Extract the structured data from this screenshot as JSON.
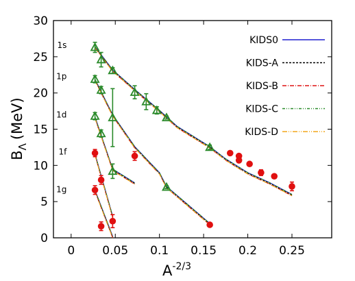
{
  "chart_data": {
    "type": "scatter",
    "xlabel": "A",
    "xlabel_sup": "-2/3",
    "ylabel": "B",
    "ylabel_sub": "Λ",
    "ylabel_unit": "(MeV)",
    "xlim": [
      -0.02,
      0.295
    ],
    "ylim": [
      0,
      30
    ],
    "xticks": [
      0,
      0.05,
      0.1,
      0.15,
      0.2,
      0.25
    ],
    "xtick_labels": [
      "0",
      "0.05",
      "0.1",
      "0.15",
      "0.2",
      "0.25"
    ],
    "yticks": [
      0,
      5,
      10,
      15,
      20,
      25,
      30
    ],
    "ytick_labels": [
      "0",
      "5",
      "10",
      "15",
      "20",
      "25",
      "30"
    ],
    "shell_labels": [
      {
        "text": "1s",
        "x": -0.005,
        "y": 26.2
      },
      {
        "text": "1p",
        "x": -0.005,
        "y": 21.9
      },
      {
        "text": "1d",
        "x": -0.005,
        "y": 16.6
      },
      {
        "text": "1f",
        "x": -0.005,
        "y": 11.5
      },
      {
        "text": "1g",
        "x": -0.005,
        "y": 6.3
      }
    ],
    "legend_position": "right",
    "series": [
      {
        "name": "KIDS0",
        "color": "#1f1fd0",
        "dash": "",
        "segments": [
          [
            [
              0.027,
              26.4
            ],
            [
              0.047,
              23.2
            ],
            [
              0.072,
              20.5
            ],
            [
              0.1,
              17.6
            ],
            [
              0.12,
              15.4
            ],
            [
              0.157,
              12.6
            ],
            [
              0.175,
              10.9
            ],
            [
              0.2,
              9.0
            ],
            [
              0.225,
              7.6
            ],
            [
              0.25,
              6.0
            ]
          ],
          [
            [
              0.027,
              21.9
            ],
            [
              0.047,
              17.0
            ],
            [
              0.072,
              12.6
            ],
            [
              0.1,
              9.0
            ],
            [
              0.108,
              7.1
            ],
            [
              0.157,
              2.0
            ]
          ],
          [
            [
              0.027,
              16.7
            ],
            [
              0.047,
              9.5
            ],
            [
              0.072,
              7.6
            ]
          ],
          [
            [
              0.027,
              11.6
            ],
            [
              0.047,
              3.0
            ]
          ],
          [
            [
              0.027,
              6.6
            ],
            [
              0.047,
              0.2
            ]
          ]
        ]
      },
      {
        "name": "KIDS-A",
        "color": "#000000",
        "dash": "3,2",
        "segments": [
          [
            [
              0.027,
              26.3
            ],
            [
              0.047,
              23.1
            ],
            [
              0.072,
              20.4
            ],
            [
              0.1,
              17.5
            ],
            [
              0.12,
              15.3
            ],
            [
              0.157,
              12.5
            ],
            [
              0.175,
              10.8
            ],
            [
              0.2,
              8.9
            ],
            [
              0.225,
              7.5
            ],
            [
              0.25,
              5.9
            ]
          ],
          [
            [
              0.027,
              21.8
            ],
            [
              0.047,
              16.9
            ],
            [
              0.072,
              12.5
            ],
            [
              0.1,
              8.9
            ],
            [
              0.108,
              7.0
            ],
            [
              0.157,
              1.9
            ]
          ],
          [
            [
              0.027,
              16.6
            ],
            [
              0.047,
              9.4
            ],
            [
              0.072,
              7.5
            ]
          ],
          [
            [
              0.027,
              11.5
            ],
            [
              0.047,
              2.9
            ]
          ],
          [
            [
              0.027,
              6.5
            ],
            [
              0.047,
              0.1
            ]
          ]
        ]
      },
      {
        "name": "KIDS-B",
        "color": "#dd1111",
        "dash": "6,2,1,2",
        "segments": [
          [
            [
              0.027,
              26.3
            ],
            [
              0.047,
              23.0
            ],
            [
              0.072,
              20.3
            ],
            [
              0.1,
              17.4
            ],
            [
              0.12,
              15.2
            ],
            [
              0.157,
              12.4
            ],
            [
              0.175,
              10.7
            ],
            [
              0.2,
              8.8
            ],
            [
              0.225,
              7.4
            ],
            [
              0.25,
              5.8
            ]
          ],
          [
            [
              0.027,
              21.7
            ],
            [
              0.047,
              16.8
            ],
            [
              0.072,
              12.4
            ],
            [
              0.1,
              8.8
            ],
            [
              0.108,
              6.9
            ],
            [
              0.157,
              1.8
            ]
          ],
          [
            [
              0.027,
              16.5
            ],
            [
              0.047,
              9.3
            ],
            [
              0.072,
              7.4
            ]
          ],
          [
            [
              0.027,
              11.4
            ],
            [
              0.047,
              2.8
            ]
          ],
          [
            [
              0.027,
              6.4
            ],
            [
              0.047,
              0.0
            ]
          ]
        ]
      },
      {
        "name": "KIDS-C",
        "color": "#2a8a2a",
        "dash": "4,2,1,2,1,2",
        "segments": [
          [
            [
              0.027,
              26.4
            ],
            [
              0.047,
              23.2
            ],
            [
              0.072,
              20.5
            ],
            [
              0.1,
              17.6
            ],
            [
              0.12,
              15.4
            ],
            [
              0.157,
              12.6
            ],
            [
              0.175,
              10.9
            ],
            [
              0.2,
              9.0
            ],
            [
              0.225,
              7.6
            ],
            [
              0.25,
              6.0
            ]
          ],
          [
            [
              0.027,
              21.9
            ],
            [
              0.047,
              17.0
            ],
            [
              0.072,
              12.6
            ],
            [
              0.1,
              9.0
            ],
            [
              0.108,
              7.1
            ],
            [
              0.157,
              2.0
            ]
          ],
          [
            [
              0.027,
              16.7
            ],
            [
              0.047,
              9.5
            ],
            [
              0.072,
              7.6
            ]
          ],
          [
            [
              0.027,
              11.6
            ],
            [
              0.047,
              3.0
            ]
          ],
          [
            [
              0.027,
              6.6
            ],
            [
              0.047,
              0.2
            ]
          ]
        ]
      },
      {
        "name": "KIDS-D",
        "color": "#f2a51a",
        "dash": "7,2,1,2,1,2",
        "segments": [
          [
            [
              0.027,
              26.2
            ],
            [
              0.047,
              23.0
            ],
            [
              0.072,
              20.3
            ],
            [
              0.1,
              17.4
            ],
            [
              0.12,
              15.2
            ],
            [
              0.157,
              12.4
            ],
            [
              0.175,
              10.7
            ],
            [
              0.2,
              8.8
            ],
            [
              0.225,
              7.4
            ],
            [
              0.25,
              5.8
            ]
          ],
          [
            [
              0.027,
              21.7
            ],
            [
              0.047,
              16.8
            ],
            [
              0.072,
              12.4
            ],
            [
              0.1,
              8.8
            ],
            [
              0.108,
              6.9
            ],
            [
              0.157,
              1.8
            ]
          ],
          [
            [
              0.027,
              16.5
            ],
            [
              0.047,
              9.3
            ],
            [
              0.072,
              7.4
            ]
          ],
          [
            [
              0.027,
              11.4
            ],
            [
              0.047,
              2.8
            ]
          ],
          [
            [
              0.027,
              6.4
            ],
            [
              0.047,
              0.0
            ]
          ]
        ]
      }
    ],
    "data_points": {
      "triangles": {
        "color": "#2a8a2a",
        "points": [
          {
            "x": 0.027,
            "y": 26.3,
            "err": 0.7
          },
          {
            "x": 0.034,
            "y": 24.6,
            "err": 1.0
          },
          {
            "x": 0.047,
            "y": 23.1,
            "err": 0.4
          },
          {
            "x": 0.072,
            "y": 20.1,
            "err": 0.9
          },
          {
            "x": 0.085,
            "y": 18.8,
            "err": 1.1
          },
          {
            "x": 0.097,
            "y": 17.6,
            "err": 0.5
          },
          {
            "x": 0.108,
            "y": 16.6,
            "err": 0.2
          },
          {
            "x": 0.157,
            "y": 12.5,
            "err": 0.3
          },
          {
            "x": 0.027,
            "y": 21.9,
            "err": 0.5
          },
          {
            "x": 0.034,
            "y": 20.4,
            "err": 0.5
          },
          {
            "x": 0.027,
            "y": 16.8,
            "err": 0.5
          },
          {
            "x": 0.034,
            "y": 14.4,
            "err": 0.5
          },
          {
            "x": 0.047,
            "y": 16.6,
            "err": 4.0
          },
          {
            "x": 0.047,
            "y": 9.2,
            "err": 1.0
          },
          {
            "x": 0.108,
            "y": 7.0,
            "err": 0.2
          }
        ]
      },
      "circles": {
        "color": "#e01010",
        "points": [
          {
            "x": 0.027,
            "y": 11.7,
            "err": 0.5
          },
          {
            "x": 0.034,
            "y": 8.0,
            "err": 0.6
          },
          {
            "x": 0.072,
            "y": 11.3,
            "err": 0.6
          },
          {
            "x": 0.027,
            "y": 6.6,
            "err": 0.6
          },
          {
            "x": 0.034,
            "y": 1.6,
            "err": 0.6
          },
          {
            "x": 0.047,
            "y": 2.3,
            "err": 0.9
          },
          {
            "x": 0.157,
            "y": 1.8,
            "err": 0.2
          },
          {
            "x": 0.18,
            "y": 11.7,
            "err": 0.2
          },
          {
            "x": 0.19,
            "y": 11.3,
            "err": 0.2
          },
          {
            "x": 0.19,
            "y": 10.7,
            "err": 0.2
          },
          {
            "x": 0.202,
            "y": 10.2,
            "err": 0.2
          },
          {
            "x": 0.215,
            "y": 9.0,
            "err": 0.4
          },
          {
            "x": 0.23,
            "y": 8.5,
            "err": 0.2
          },
          {
            "x": 0.25,
            "y": 7.1,
            "err": 0.6
          }
        ]
      }
    }
  }
}
